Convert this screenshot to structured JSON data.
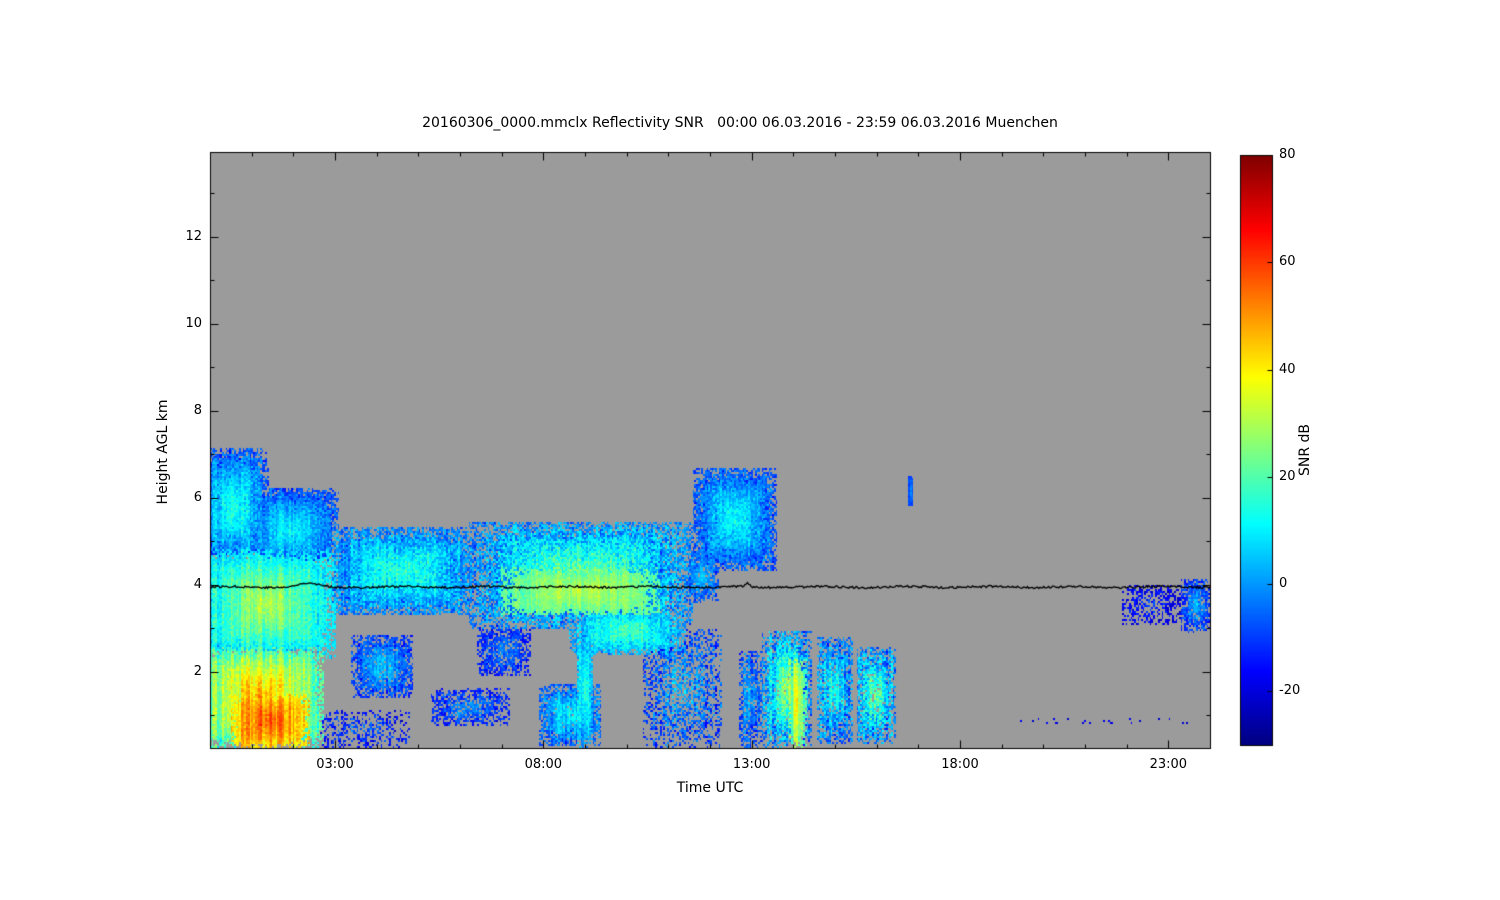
{
  "chart_data": {
    "type": "heatmap",
    "title": "20160306_0000.mmclx Reflectivity SNR   00:00 06.03.2016 - 23:59 06.03.2016 Muenchen",
    "xlabel": "Time UTC",
    "ylabel": "Height AGL km",
    "xlim": [
      0,
      24
    ],
    "ylim": [
      0.25,
      13.95
    ],
    "xticks": [
      {
        "value": 3,
        "label": "03:00"
      },
      {
        "value": 8,
        "label": "08:00"
      },
      {
        "value": 13,
        "label": "13:00"
      },
      {
        "value": 18,
        "label": "18:00"
      },
      {
        "value": 23,
        "label": "23:00"
      }
    ],
    "yticks": [
      {
        "value": 2,
        "label": "2"
      },
      {
        "value": 4,
        "label": "4"
      },
      {
        "value": 6,
        "label": "6"
      },
      {
        "value": 8,
        "label": "8"
      },
      {
        "value": 10,
        "label": "10"
      },
      {
        "value": 12,
        "label": "12"
      }
    ],
    "background_color": "#9b9b9b",
    "colormap": "jet",
    "colorbar": {
      "label": "SNR dB",
      "vmin": -30,
      "vmax": 80,
      "ticks": [
        {
          "value": 80,
          "label": "80"
        },
        {
          "value": 60,
          "label": "60"
        },
        {
          "value": 40,
          "label": "40"
        },
        {
          "value": 20,
          "label": "20"
        },
        {
          "value": 0,
          "label": "0"
        },
        {
          "value": -20,
          "label": "-20"
        }
      ]
    },
    "melting_line": {
      "height_km": 3.95,
      "color": "#000000"
    },
    "features": [
      {
        "name": "storm-upper-early",
        "t0": -0.3,
        "t1": 1.4,
        "z0": 4.4,
        "z1": 7.15,
        "core": 16,
        "edge": -14,
        "p": 2,
        "fuzz": 0.22,
        "streak": 0.5,
        "dens": 1
      },
      {
        "name": "storm-upper-late",
        "t0": 0.8,
        "t1": 3.1,
        "z0": 4.3,
        "z1": 6.25,
        "core": 12,
        "edge": -14,
        "p": 2,
        "fuzz": 0.22,
        "streak": 0.5,
        "dens": 1
      },
      {
        "name": "storm-mid",
        "t0": -0.3,
        "t1": 3.0,
        "z0": 2.3,
        "z1": 4.8,
        "core": 30,
        "edge": 2,
        "p": 3,
        "fuzz": 0.18,
        "streak": 0.7,
        "dens": 1
      },
      {
        "name": "storm-low",
        "t0": -0.3,
        "t1": 2.75,
        "z0": 0.25,
        "z1": 2.6,
        "core": 46,
        "edge": 12,
        "p": 3,
        "fuzz": 0.15,
        "streak": 1,
        "dens": 1
      },
      {
        "name": "storm-core-red",
        "t0": 0.5,
        "t1": 2.4,
        "z0": 0.25,
        "z1": 1.5,
        "core": 56,
        "edge": 38,
        "p": 3,
        "fuzz": 0.2,
        "streak": 1,
        "dens": 1
      },
      {
        "name": "storm-tail-sprinkle",
        "t0": 2.5,
        "t1": 4.8,
        "z0": 0.25,
        "z1": 1.1,
        "core": -6,
        "edge": -20,
        "p": 2,
        "fuzz": 0.4,
        "streak": 0.6,
        "dens": 0.45
      },
      {
        "name": "layer-early",
        "t0": 2.7,
        "t1": 6.5,
        "z0": 3.3,
        "z1": 5.3,
        "core": 17,
        "edge": -10,
        "p": 3,
        "fuzz": 0.3,
        "streak": 0.5,
        "dens": 1
      },
      {
        "name": "layer-main",
        "t0": 6.2,
        "t1": 11.6,
        "z0": 3.0,
        "z1": 5.45,
        "core": 24,
        "edge": -10,
        "p": 3,
        "fuzz": 0.3,
        "streak": 0.4,
        "dens": 1
      },
      {
        "name": "layer-yellow-core",
        "t0": 7.0,
        "t1": 10.8,
        "z0": 3.3,
        "z1": 4.4,
        "core": 31,
        "edge": 18,
        "p": 3,
        "fuzz": 0.25,
        "streak": 0.5,
        "dens": 1
      },
      {
        "name": "layer-under",
        "t0": 8.6,
        "t1": 11.4,
        "z0": 2.4,
        "z1": 3.5,
        "core": 20,
        "edge": -4,
        "p": 2,
        "fuzz": 0.3,
        "streak": 0.5,
        "dens": 1
      },
      {
        "name": "morning-low-1",
        "t0": 3.4,
        "t1": 4.9,
        "z0": 1.4,
        "z1": 2.85,
        "core": 6,
        "edge": -16,
        "p": 2,
        "fuzz": 0.3,
        "streak": 0.4,
        "dens": 0.9
      },
      {
        "name": "morning-low-2",
        "t0": 5.3,
        "t1": 7.2,
        "z0": 0.75,
        "z1": 1.6,
        "core": 0,
        "edge": -18,
        "p": 2,
        "fuzz": 0.35,
        "streak": 0.4,
        "dens": 0.7
      },
      {
        "name": "morning-mid-blue",
        "t0": 6.4,
        "t1": 7.7,
        "z0": 1.9,
        "z1": 3.1,
        "core": -2,
        "edge": -18,
        "p": 2,
        "fuzz": 0.35,
        "streak": 0.3,
        "dens": 0.75
      },
      {
        "name": "morning-low-3",
        "t0": 7.9,
        "t1": 9.4,
        "z0": 0.3,
        "z1": 1.7,
        "core": 12,
        "edge": -12,
        "p": 2,
        "fuzz": 0.3,
        "streak": 0.6,
        "dens": 0.95
      },
      {
        "name": "morning-column",
        "t0": 8.8,
        "t1": 9.2,
        "z0": 0.25,
        "z1": 3.1,
        "core": 18,
        "edge": -4,
        "p": 2,
        "fuzz": 0.25,
        "streak": 0.7,
        "dens": 1
      },
      {
        "name": "midday-columns",
        "t0": 10.4,
        "t1": 12.3,
        "z0": 0.25,
        "z1": 3.0,
        "core": 4,
        "edge": -16,
        "p": 2,
        "fuzz": 0.4,
        "streak": 0.8,
        "dens": 0.55
      },
      {
        "name": "noon-neck",
        "t0": 11.4,
        "t1": 12.2,
        "z0": 3.6,
        "z1": 4.8,
        "core": 6,
        "edge": -12,
        "p": 2,
        "fuzz": 0.3,
        "streak": 0.3,
        "dens": 0.8
      },
      {
        "name": "noon-blob",
        "t0": 11.6,
        "t1": 13.6,
        "z0": 4.3,
        "z1": 6.7,
        "core": 13,
        "edge": -14,
        "p": 3,
        "fuzz": 0.25,
        "streak": 0.3,
        "dens": 1
      },
      {
        "name": "afternoon-cell-1",
        "t0": 12.7,
        "t1": 13.25,
        "z0": 0.25,
        "z1": 2.5,
        "core": 4,
        "edge": -14,
        "p": 2,
        "fuzz": 0.35,
        "streak": 0.7,
        "dens": 0.8
      },
      {
        "name": "afternoon-cell-2",
        "t0": 13.25,
        "t1": 14.45,
        "z0": 0.25,
        "z1": 2.95,
        "core": 26,
        "edge": -10,
        "p": 2,
        "fuzz": 0.3,
        "streak": 0.9,
        "dens": 0.95
      },
      {
        "name": "afternoon-yellow-streak",
        "t0": 13.9,
        "t1": 14.3,
        "z0": 0.25,
        "z1": 2.3,
        "core": 35,
        "edge": 20,
        "p": 2,
        "fuzz": 0.3,
        "streak": 1,
        "dens": 1
      },
      {
        "name": "afternoon-cell-3",
        "t0": 14.55,
        "t1": 15.45,
        "z0": 0.35,
        "z1": 2.8,
        "core": 17,
        "edge": -12,
        "p": 2,
        "fuzz": 0.35,
        "streak": 0.8,
        "dens": 0.9
      },
      {
        "name": "afternoon-cell-4",
        "t0": 15.5,
        "t1": 16.45,
        "z0": 0.35,
        "z1": 2.6,
        "core": 23,
        "edge": -12,
        "p": 2,
        "fuzz": 0.35,
        "streak": 0.8,
        "dens": 0.9
      },
      {
        "name": "evening-dash",
        "t0": 16.75,
        "t1": 16.9,
        "z0": 5.8,
        "z1": 6.5,
        "core": -2,
        "edge": -12,
        "p": 2,
        "fuzz": 0.2,
        "streak": 0,
        "dens": 1
      },
      {
        "name": "night-dots",
        "t0": 18.8,
        "t1": 23.6,
        "z0": 0.78,
        "z1": 0.95,
        "core": -16,
        "edge": -22,
        "p": 2,
        "fuzz": 0.3,
        "streak": 0,
        "dens": 0.07
      },
      {
        "name": "late-speckle-band",
        "t0": 21.9,
        "t1": 23.3,
        "z0": 3.1,
        "z1": 4.0,
        "core": -10,
        "edge": -22,
        "p": 2,
        "fuzz": 0.4,
        "streak": 0.4,
        "dens": 0.5
      },
      {
        "name": "late-patch",
        "t0": 23.3,
        "t1": 24.0,
        "z0": 2.9,
        "z1": 4.15,
        "core": 4,
        "edge": -16,
        "p": 2,
        "fuzz": 0.3,
        "streak": 0.4,
        "dens": 0.85
      }
    ]
  }
}
